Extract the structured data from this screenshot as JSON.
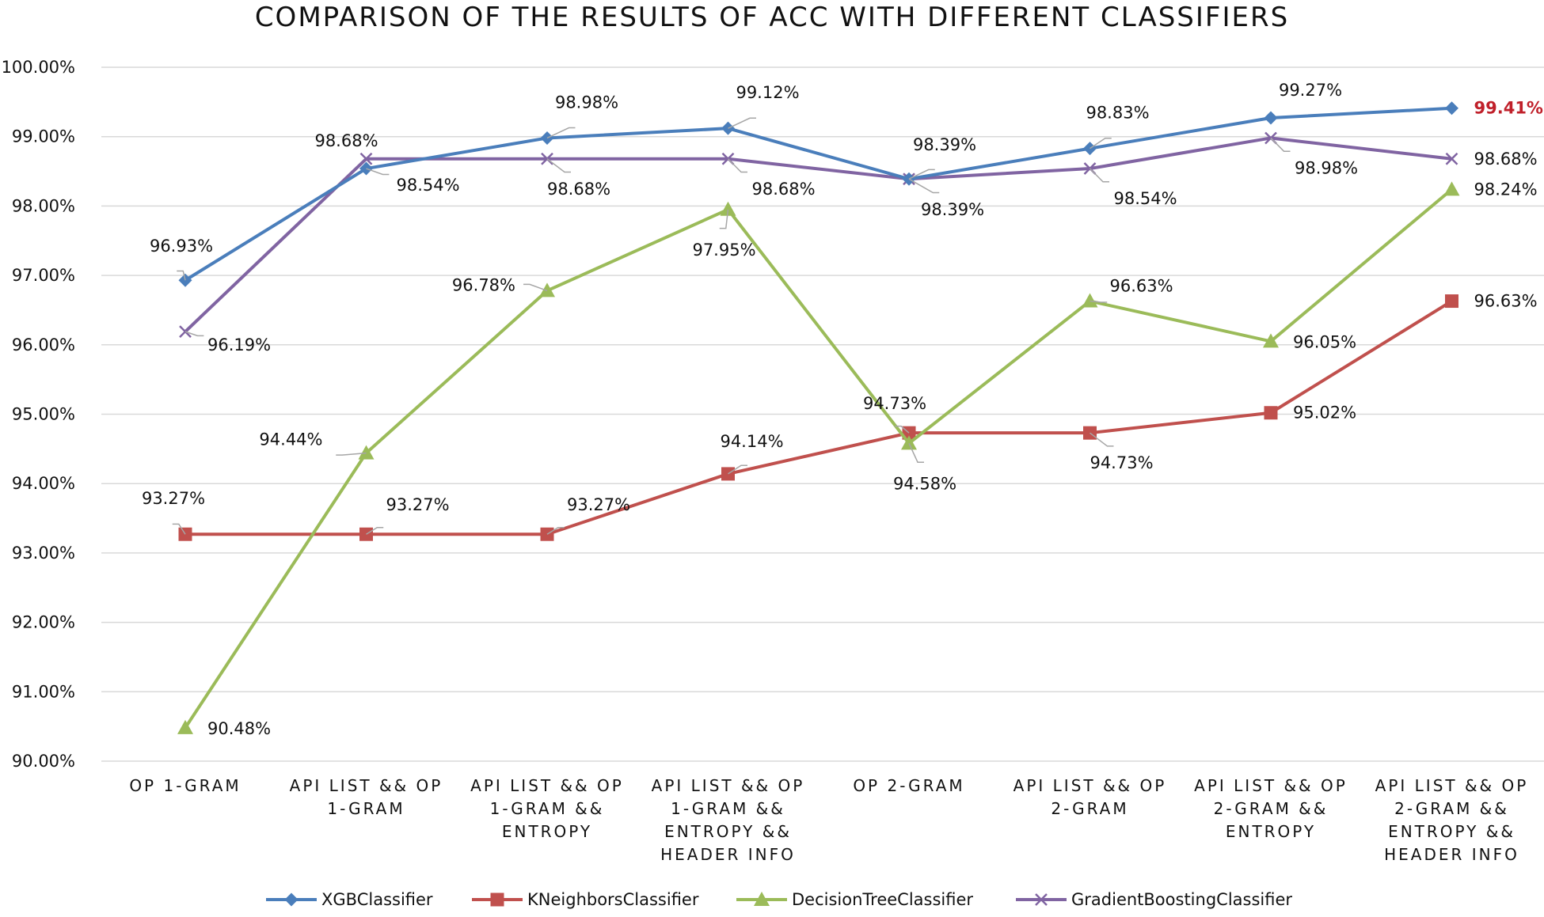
{
  "chart_data": {
    "type": "line",
    "title": "COMPARISON OF THE RESULTS OF ACC WITH DIFFERENT CLASSIFIERS",
    "categories": [
      [
        "OP 1-GRAM"
      ],
      [
        "API LIST && OP",
        "1-GRAM"
      ],
      [
        "API LIST && OP",
        "1-GRAM &&",
        "ENTROPY"
      ],
      [
        "API LIST && OP",
        "1-GRAM &&",
        "ENTROPY &&",
        "HEADER INFO"
      ],
      [
        "OP 2-GRAM"
      ],
      [
        "API LIST && OP",
        "2-GRAM"
      ],
      [
        "API LIST && OP",
        "2-GRAM &&",
        "ENTROPY"
      ],
      [
        "API LIST && OP",
        "2-GRAM &&",
        "ENTROPY &&",
        "HEADER INFO"
      ]
    ],
    "ylim": [
      90,
      100
    ],
    "ytick_step": 1,
    "ytick_labels": [
      "90.00%",
      "91.00%",
      "92.00%",
      "93.00%",
      "94.00%",
      "95.00%",
      "96.00%",
      "97.00%",
      "98.00%",
      "99.00%",
      "100.00%"
    ],
    "grid": true,
    "legend_position": "bottom",
    "series": [
      {
        "name": "XGBClassifier",
        "color": "#4a7ebb",
        "marker": "diamond",
        "values": [
          96.93,
          98.54,
          98.98,
          99.12,
          98.39,
          98.83,
          99.27,
          99.41
        ],
        "labels": [
          "96.93%",
          "98.54%",
          "98.98%",
          "99.12%",
          "98.39%",
          "98.83%",
          "99.27%",
          "99.41%"
        ]
      },
      {
        "name": "KNeighborsClassifier",
        "color": "#c0504d",
        "marker": "square",
        "values": [
          93.27,
          93.27,
          93.27,
          94.14,
          94.73,
          94.73,
          95.02,
          96.63
        ],
        "labels": [
          "93.27%",
          "93.27%",
          "93.27%",
          "94.14%",
          "94.73%",
          "94.73%",
          "95.02%",
          "96.63%"
        ]
      },
      {
        "name": "DecisionTreeClassifier",
        "color": "#9bbb59",
        "marker": "triangle",
        "values": [
          90.48,
          94.44,
          96.78,
          97.95,
          94.58,
          96.63,
          96.05,
          98.24
        ],
        "labels": [
          "90.48%",
          "94.44%",
          "96.78%",
          "97.95%",
          "94.58%",
          "96.63%",
          "96.05%",
          "98.24%"
        ]
      },
      {
        "name": "GradientBoostingClassifier",
        "color": "#8064a2",
        "marker": "x",
        "values": [
          96.19,
          98.68,
          98.68,
          98.68,
          98.39,
          98.54,
          98.98,
          98.68
        ],
        "labels": [
          "96.19%",
          "98.68%",
          "98.68%",
          "98.68%",
          "98.39%",
          "98.54%",
          "98.98%",
          "98.68%"
        ]
      }
    ],
    "highlight": {
      "series": "XGBClassifier",
      "index": 7,
      "color": "#c0202a"
    }
  }
}
